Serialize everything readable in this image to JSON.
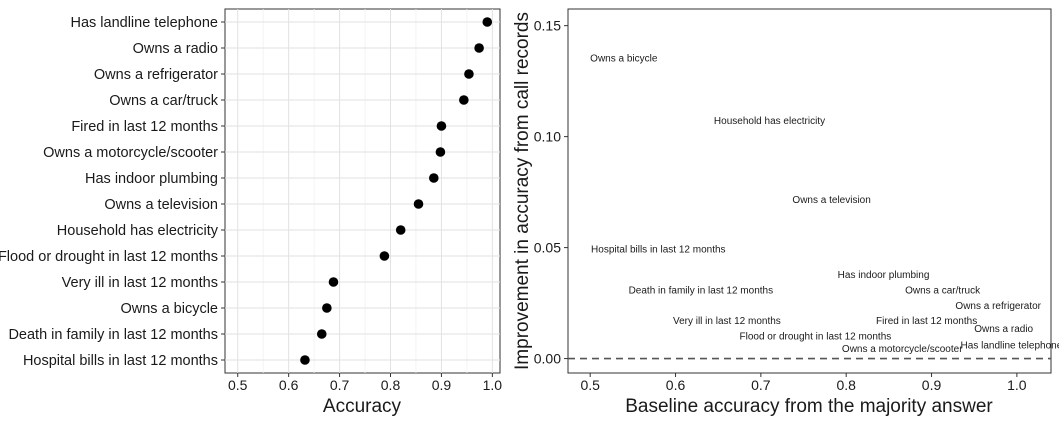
{
  "chart_data": [
    {
      "type": "scatter",
      "variant": "dot-plot",
      "categories": [
        "Has landline telephone",
        "Owns a radio",
        "Owns a refrigerator",
        "Owns a car/truck",
        "Fired in last 12 months",
        "Owns a motorcycle/scooter",
        "Has indoor plumbing",
        "Owns a television",
        "Household has electricity",
        "Flood or drought in last 12 months",
        "Very ill in last 12 months",
        "Owns a bicycle",
        "Death in family in last 12 months",
        "Hospital bills in last 12 months"
      ],
      "values": [
        0.99,
        0.974,
        0.954,
        0.944,
        0.9,
        0.898,
        0.885,
        0.855,
        0.82,
        0.788,
        0.688,
        0.675,
        0.665,
        0.632
      ],
      "xlabel": "Accuracy",
      "ylabel": "",
      "xlim": [
        0.475,
        1.015
      ],
      "xticks": [
        "0.5",
        "0.6",
        "0.7",
        "0.8",
        "0.9",
        "1.0"
      ],
      "grid": true,
      "color": "#000000"
    },
    {
      "type": "scatter",
      "points": [
        {
          "label": "Owns a bicycle",
          "x": 0.5,
          "y": 0.1356
        },
        {
          "label": "Household has electricity",
          "x": 0.645,
          "y": 0.1075
        },
        {
          "label": "Owns a television",
          "x": 0.737,
          "y": 0.072
        },
        {
          "label": "Hospital bills in last 12 months",
          "x": 0.501,
          "y": 0.0497
        },
        {
          "label": "Has indoor plumbing",
          "x": 0.79,
          "y": 0.038
        },
        {
          "label": "Death in family in last 12 months",
          "x": 0.545,
          "y": 0.0311
        },
        {
          "label": "Owns a car/truck",
          "x": 0.869,
          "y": 0.0311
        },
        {
          "label": "Owns a refrigerator",
          "x": 0.928,
          "y": 0.0242
        },
        {
          "label": "Very ill in last 12 months",
          "x": 0.597,
          "y": 0.0173
        },
        {
          "label": "Fired in last 12 months",
          "x": 0.835,
          "y": 0.0173
        },
        {
          "label": "Owns a radio",
          "x": 0.95,
          "y": 0.0138
        },
        {
          "label": "Flood or drought in last 12 months",
          "x": 0.675,
          "y": 0.0104
        },
        {
          "label": "Has landline telephone",
          "x": 0.934,
          "y": 0.0063
        },
        {
          "label": "Owns a motorcycle/scooter",
          "x": 0.795,
          "y": 0.0047
        }
      ],
      "xlabel": "Baseline accuracy from the majority answer",
      "ylabel": "Improvement in accuracy from call records",
      "xlim": [
        0.474,
        1.04
      ],
      "ylim": [
        -0.0065,
        0.1575
      ],
      "xticks": [
        "0.5",
        "0.6",
        "0.7",
        "0.8",
        "0.9",
        "1.0"
      ],
      "yticks": [
        "0.00",
        "0.05",
        "0.10",
        "0.15"
      ],
      "reference_line": {
        "y": 0,
        "style": "dashed"
      },
      "grid": false
    }
  ]
}
